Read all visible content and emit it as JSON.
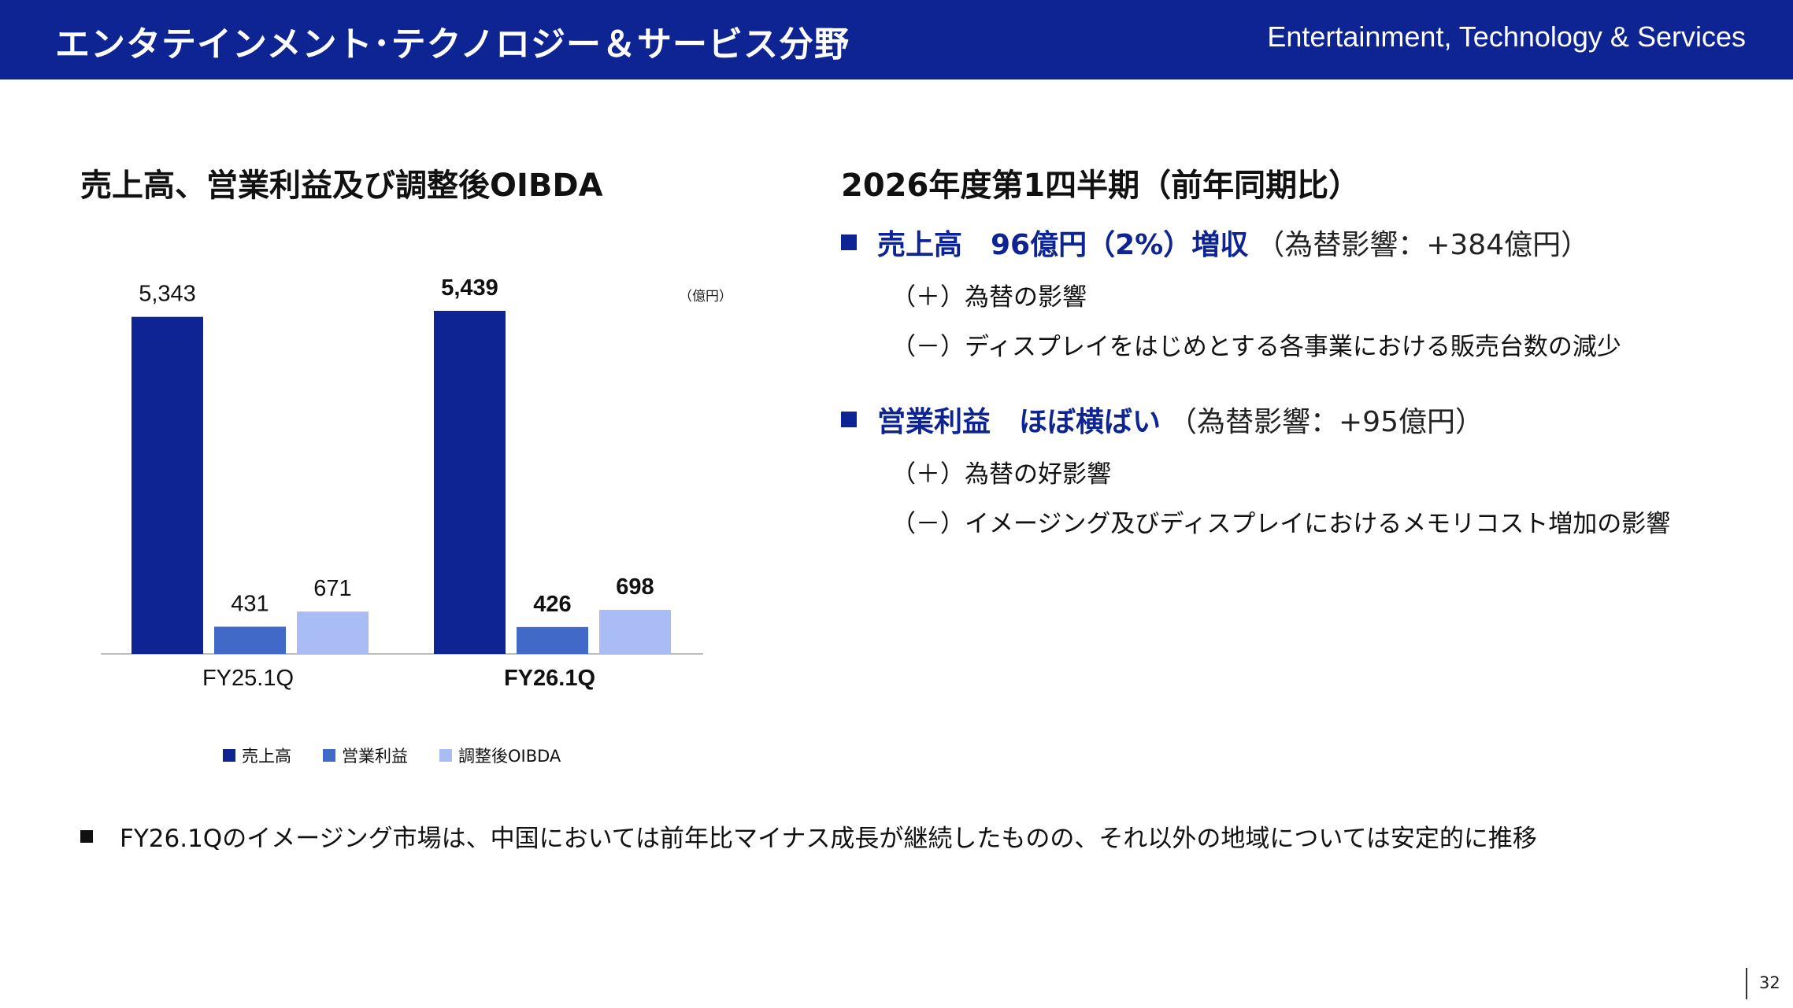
{
  "header": {
    "title": "エンタテインメント･テクノロジー＆サービス分野",
    "subtitle": "Entertainment, Technology & Services"
  },
  "left": {
    "title": "売上高、営業利益及び調整後OIBDA",
    "unit": "（億円）"
  },
  "chart_data": {
    "type": "bar",
    "categories": [
      "FY25.1Q",
      "FY26.1Q"
    ],
    "series": [
      {
        "name": "売上高",
        "values": [
          5343,
          5439
        ],
        "color": "#0d2492"
      },
      {
        "name": "営業利益",
        "values": [
          431,
          426
        ],
        "color": "#4169c8"
      },
      {
        "name": "調整後OIBDA",
        "values": [
          671,
          698
        ],
        "color": "#a9bcf5"
      }
    ],
    "data_labels": [
      [
        "5,343",
        "431",
        "671"
      ],
      [
        "5,439",
        "426",
        "698"
      ]
    ],
    "bold_category": "FY26.1Q",
    "unit": "（億円）",
    "legend_position": "bottom",
    "grid": false
  },
  "right": {
    "title": "2026年度第1四半期（前年同期比）",
    "items": [
      {
        "head_strong": "売上高　96億円（2%）増収",
        "head_normal": "（為替影響：+384億円）",
        "subs": [
          "（＋）為替の影響",
          "（－）ディスプレイをはじめとする各事業における販売台数の減少"
        ]
      },
      {
        "head_strong": "営業利益　ほぼ横ばい",
        "head_normal": "（為替影響：+95億円）",
        "subs": [
          "（＋）為替の好影響",
          "（－）イメージング及びディスプレイにおけるメモリコスト増加の影響"
        ]
      }
    ]
  },
  "footer": {
    "note": "FY26.1Qのイメージング市場は、中国においては前年比マイナス成長が継続したものの、それ以外の地域については安定的に推移"
  },
  "page_number": "32"
}
